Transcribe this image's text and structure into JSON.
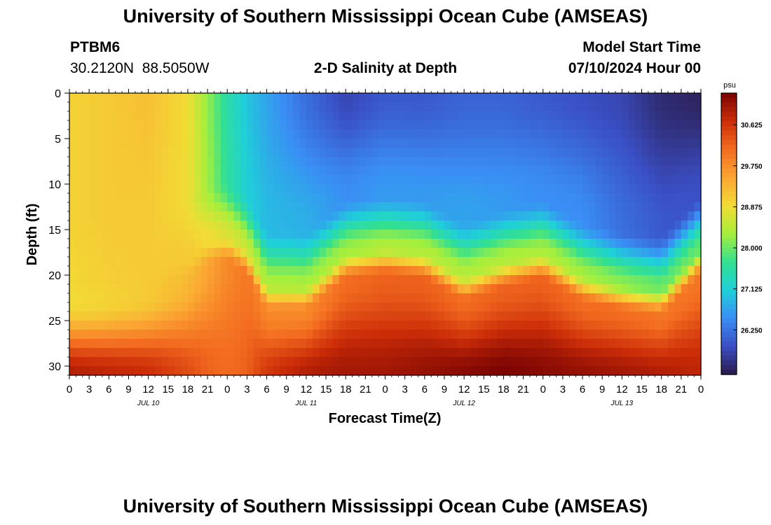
{
  "header": {
    "title": "University of Southern Mississippi Ocean Cube (AMSEAS)",
    "station_id": "PTBM6",
    "station_coords": "30.2120N  88.5050W",
    "plot_title": "2-D Salinity at Depth",
    "model_start_label": "Model Start Time",
    "model_start_value": "07/10/2024 Hour 00"
  },
  "footer": {
    "title": "University of Southern Mississippi Ocean Cube (AMSEAS)"
  },
  "colors": {
    "colormap": [
      "#2b1a4a",
      "#3a4fc4",
      "#3a8ef5",
      "#1fd0d8",
      "#33e090",
      "#a6ef3c",
      "#f2dc35",
      "#fba533",
      "#f36c20",
      "#cc2d08",
      "#7a0403"
    ]
  },
  "chart_data": {
    "type": "heatmap",
    "title": "2-D Salinity at Depth",
    "xlabel": "Forecast Time(Z)",
    "ylabel": "Depth (ft)",
    "x_ticks": [
      "0",
      "3",
      "6",
      "9",
      "12",
      "15",
      "18",
      "21",
      "0",
      "3",
      "6",
      "9",
      "12",
      "15",
      "18",
      "21",
      "0",
      "3",
      "6",
      "9",
      "12",
      "15",
      "18",
      "21",
      "0",
      "3",
      "6",
      "9",
      "12",
      "15",
      "18",
      "21",
      "0"
    ],
    "x_range_hours": [
      0,
      96
    ],
    "day_labels": [
      {
        "label": "JUL 10",
        "hour": 12
      },
      {
        "label": "JUL 11",
        "hour": 36
      },
      {
        "label": "JUL 12",
        "hour": 60
      },
      {
        "label": "JUL 13",
        "hour": 84
      }
    ],
    "y_ticks": [
      0,
      5,
      10,
      15,
      20,
      25,
      30
    ],
    "ylim": [
      0,
      31
    ],
    "y_inverted": true,
    "colorbar": {
      "unit": "psu",
      "range": [
        25.3,
        31.3
      ],
      "ticks": [
        "30.625",
        "29.750",
        "28.875",
        "28.000",
        "27.125",
        "26.250"
      ]
    },
    "time_hours": [
      0,
      6,
      12,
      18,
      21,
      24,
      27,
      30,
      36,
      42,
      48,
      54,
      60,
      66,
      72,
      78,
      84,
      90,
      96
    ],
    "surface_psu": [
      29.0,
      29.1,
      29.2,
      28.9,
      28.2,
      27.5,
      27.0,
      26.7,
      26.2,
      25.8,
      26.0,
      26.0,
      26.1,
      26.1,
      26.0,
      25.9,
      25.8,
      25.5,
      25.4
    ],
    "upper_psu": [
      29.0,
      29.1,
      29.1,
      28.9,
      28.3,
      27.6,
      27.1,
      26.9,
      26.8,
      26.5,
      26.6,
      26.6,
      26.7,
      26.6,
      26.5,
      26.5,
      26.2,
      26.0,
      25.9
    ],
    "front_depth_ft": [
      20.0,
      20.0,
      19.5,
      18.0,
      16.0,
      15.5,
      17.0,
      21.0,
      21.0,
      17.5,
      17.0,
      17.5,
      20.0,
      18.5,
      17.5,
      20.0,
      21.0,
      21.5,
      17.0
    ],
    "mid_psu": [
      28.9,
      29.0,
      29.1,
      29.3,
      29.5,
      29.8,
      30.0,
      29.8,
      29.8,
      30.1,
      30.2,
      30.2,
      30.1,
      30.2,
      30.2,
      30.1,
      30.1,
      30.0,
      30.0
    ],
    "bottom_psu": [
      30.9,
      30.8,
      30.7,
      30.4,
      30.2,
      30.1,
      30.2,
      30.6,
      30.9,
      31.0,
      31.0,
      31.1,
      31.2,
      31.3,
      31.2,
      31.1,
      31.0,
      30.9,
      30.8
    ]
  }
}
